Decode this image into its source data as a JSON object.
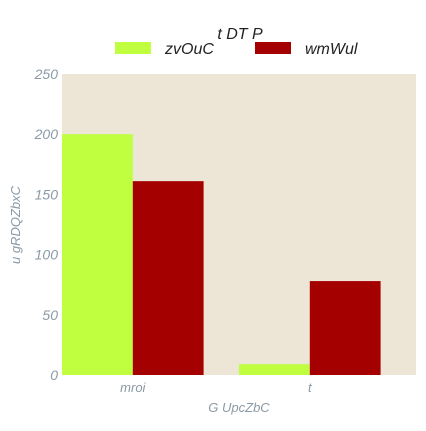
{
  "chart_data": {
    "type": "bar",
    "title": "t  DT P",
    "xlabel": "G UpcZbC",
    "ylabel": "u gRDQZbxC",
    "categories": [
      "mroi",
      "t"
    ],
    "series": [
      {
        "name": "zvOuC",
        "values": [
          200,
          9
        ],
        "color": "#bfff3f"
      },
      {
        "name": "wmWul",
        "values": [
          161,
          78
        ],
        "color": "#a50000"
      }
    ],
    "ylim": [
      0,
      250
    ],
    "yticks": [
      0,
      50,
      100,
      150,
      200,
      250
    ],
    "legend": "top-center",
    "grid": false,
    "colors": {
      "plot_background": "#ede5d5",
      "tick_text": "#8a9aa6",
      "title_text": "#222222"
    }
  }
}
